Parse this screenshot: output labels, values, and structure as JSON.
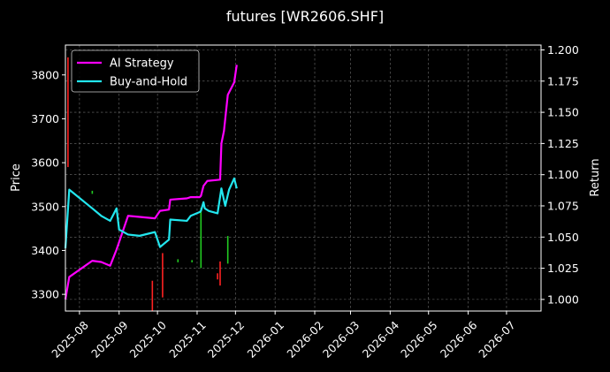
{
  "chart_data": {
    "type": "line",
    "title": "futures [WR2606.SHF]",
    "ylabel": "Price",
    "y2label": "Return",
    "ylim": [
      3262,
      3868
    ],
    "y2lim": [
      0.9907,
      1.2039
    ],
    "yticks": [
      3300,
      3400,
      3500,
      3600,
      3700,
      3800
    ],
    "y2ticks": [
      1.0,
      1.025,
      1.05,
      1.075,
      1.1,
      1.125,
      1.15,
      1.175,
      1.2
    ],
    "y2tick_labels": [
      "1.000",
      "1.025",
      "1.050",
      "1.075",
      "1.100",
      "1.125",
      "1.150",
      "1.175",
      "1.200"
    ],
    "xlim": [
      "2025-07-21",
      "2026-07-28"
    ],
    "xticks": [
      "2025-08-01",
      "2025-09-01",
      "2025-10-01",
      "2025-11-01",
      "2025-12-01",
      "2026-01-01",
      "2026-02-01",
      "2026-03-01",
      "2026-04-01",
      "2026-05-01",
      "2026-06-01",
      "2026-07-01"
    ],
    "xtick_labels": [
      "2025-08",
      "2025-09",
      "2025-10",
      "2025-11",
      "2025-12",
      "2026-01",
      "2026-02",
      "2026-03",
      "2026-04",
      "2026-05",
      "2026-06",
      "2026-07"
    ],
    "grid": true,
    "legend_position": "top-left",
    "series": [
      {
        "name": "AI Strategy",
        "axis": "return",
        "color": "#ff00ff",
        "x": [
          "2025-07-21",
          "2025-07-24",
          "2025-08-11",
          "2025-08-18",
          "2025-08-25",
          "2025-08-30",
          "2025-09-08",
          "2025-09-29",
          "2025-10-03",
          "2025-10-10",
          "2025-10-11",
          "2025-10-24",
          "2025-10-27",
          "2025-11-03",
          "2025-11-04",
          "2025-11-06",
          "2025-11-09",
          "2025-11-19",
          "2025-11-20",
          "2025-11-22",
          "2025-11-25",
          "2025-11-30",
          "2025-12-02"
        ],
        "y": [
          1.0,
          1.018,
          1.031,
          1.03,
          1.027,
          1.04,
          1.067,
          1.065,
          1.071,
          1.072,
          1.08,
          1.081,
          1.082,
          1.082,
          1.083,
          1.091,
          1.095,
          1.096,
          1.125,
          1.135,
          1.164,
          1.174,
          1.188
        ]
      },
      {
        "name": "Buy-and-Hold",
        "axis": "return",
        "color": "#22e6ee",
        "x": [
          "2025-07-21",
          "2025-07-24",
          "2025-08-11",
          "2025-08-18",
          "2025-08-25",
          "2025-08-30",
          "2025-09-01",
          "2025-09-08",
          "2025-09-17",
          "2025-09-29",
          "2025-10-03",
          "2025-10-10",
          "2025-10-11",
          "2025-10-24",
          "2025-10-27",
          "2025-11-03",
          "2025-11-04",
          "2025-11-06",
          "2025-11-07",
          "2025-11-10",
          "2025-11-17",
          "2025-11-20",
          "2025-11-23",
          "2025-11-26",
          "2025-11-30",
          "2025-12-02"
        ],
        "y": [
          1.041,
          1.088,
          1.073,
          1.067,
          1.063,
          1.073,
          1.056,
          1.052,
          1.051,
          1.054,
          1.042,
          1.048,
          1.064,
          1.063,
          1.067,
          1.07,
          1.071,
          1.078,
          1.073,
          1.071,
          1.069,
          1.089,
          1.075,
          1.088,
          1.097,
          1.089
        ]
      }
    ],
    "price_bars": [
      {
        "x": "2025-07-23",
        "low": 3590,
        "high": 3840,
        "color": "#ff2222"
      },
      {
        "x": "2025-08-11",
        "low": 3529,
        "high": 3536,
        "color": "#22cc22"
      },
      {
        "x": "2025-09-27",
        "low": 3263,
        "high": 3331,
        "color": "#ff2222"
      },
      {
        "x": "2025-10-05",
        "low": 3293,
        "high": 3394,
        "color": "#ff2222"
      },
      {
        "x": "2025-10-17",
        "low": 3373,
        "high": 3380,
        "color": "#22cc22"
      },
      {
        "x": "2025-10-28",
        "low": 3373,
        "high": 3378,
        "color": "#22cc22"
      },
      {
        "x": "2025-11-04",
        "low": 3360,
        "high": 3497,
        "color": "#22cc22"
      },
      {
        "x": "2025-11-17",
        "low": 3334,
        "high": 3348,
        "color": "#ff2222"
      },
      {
        "x": "2025-11-19",
        "low": 3320,
        "high": 3375,
        "color": "#ff2222"
      },
      {
        "x": "2025-11-25",
        "low": 3370,
        "high": 3433,
        "color": "#22cc22"
      }
    ]
  }
}
